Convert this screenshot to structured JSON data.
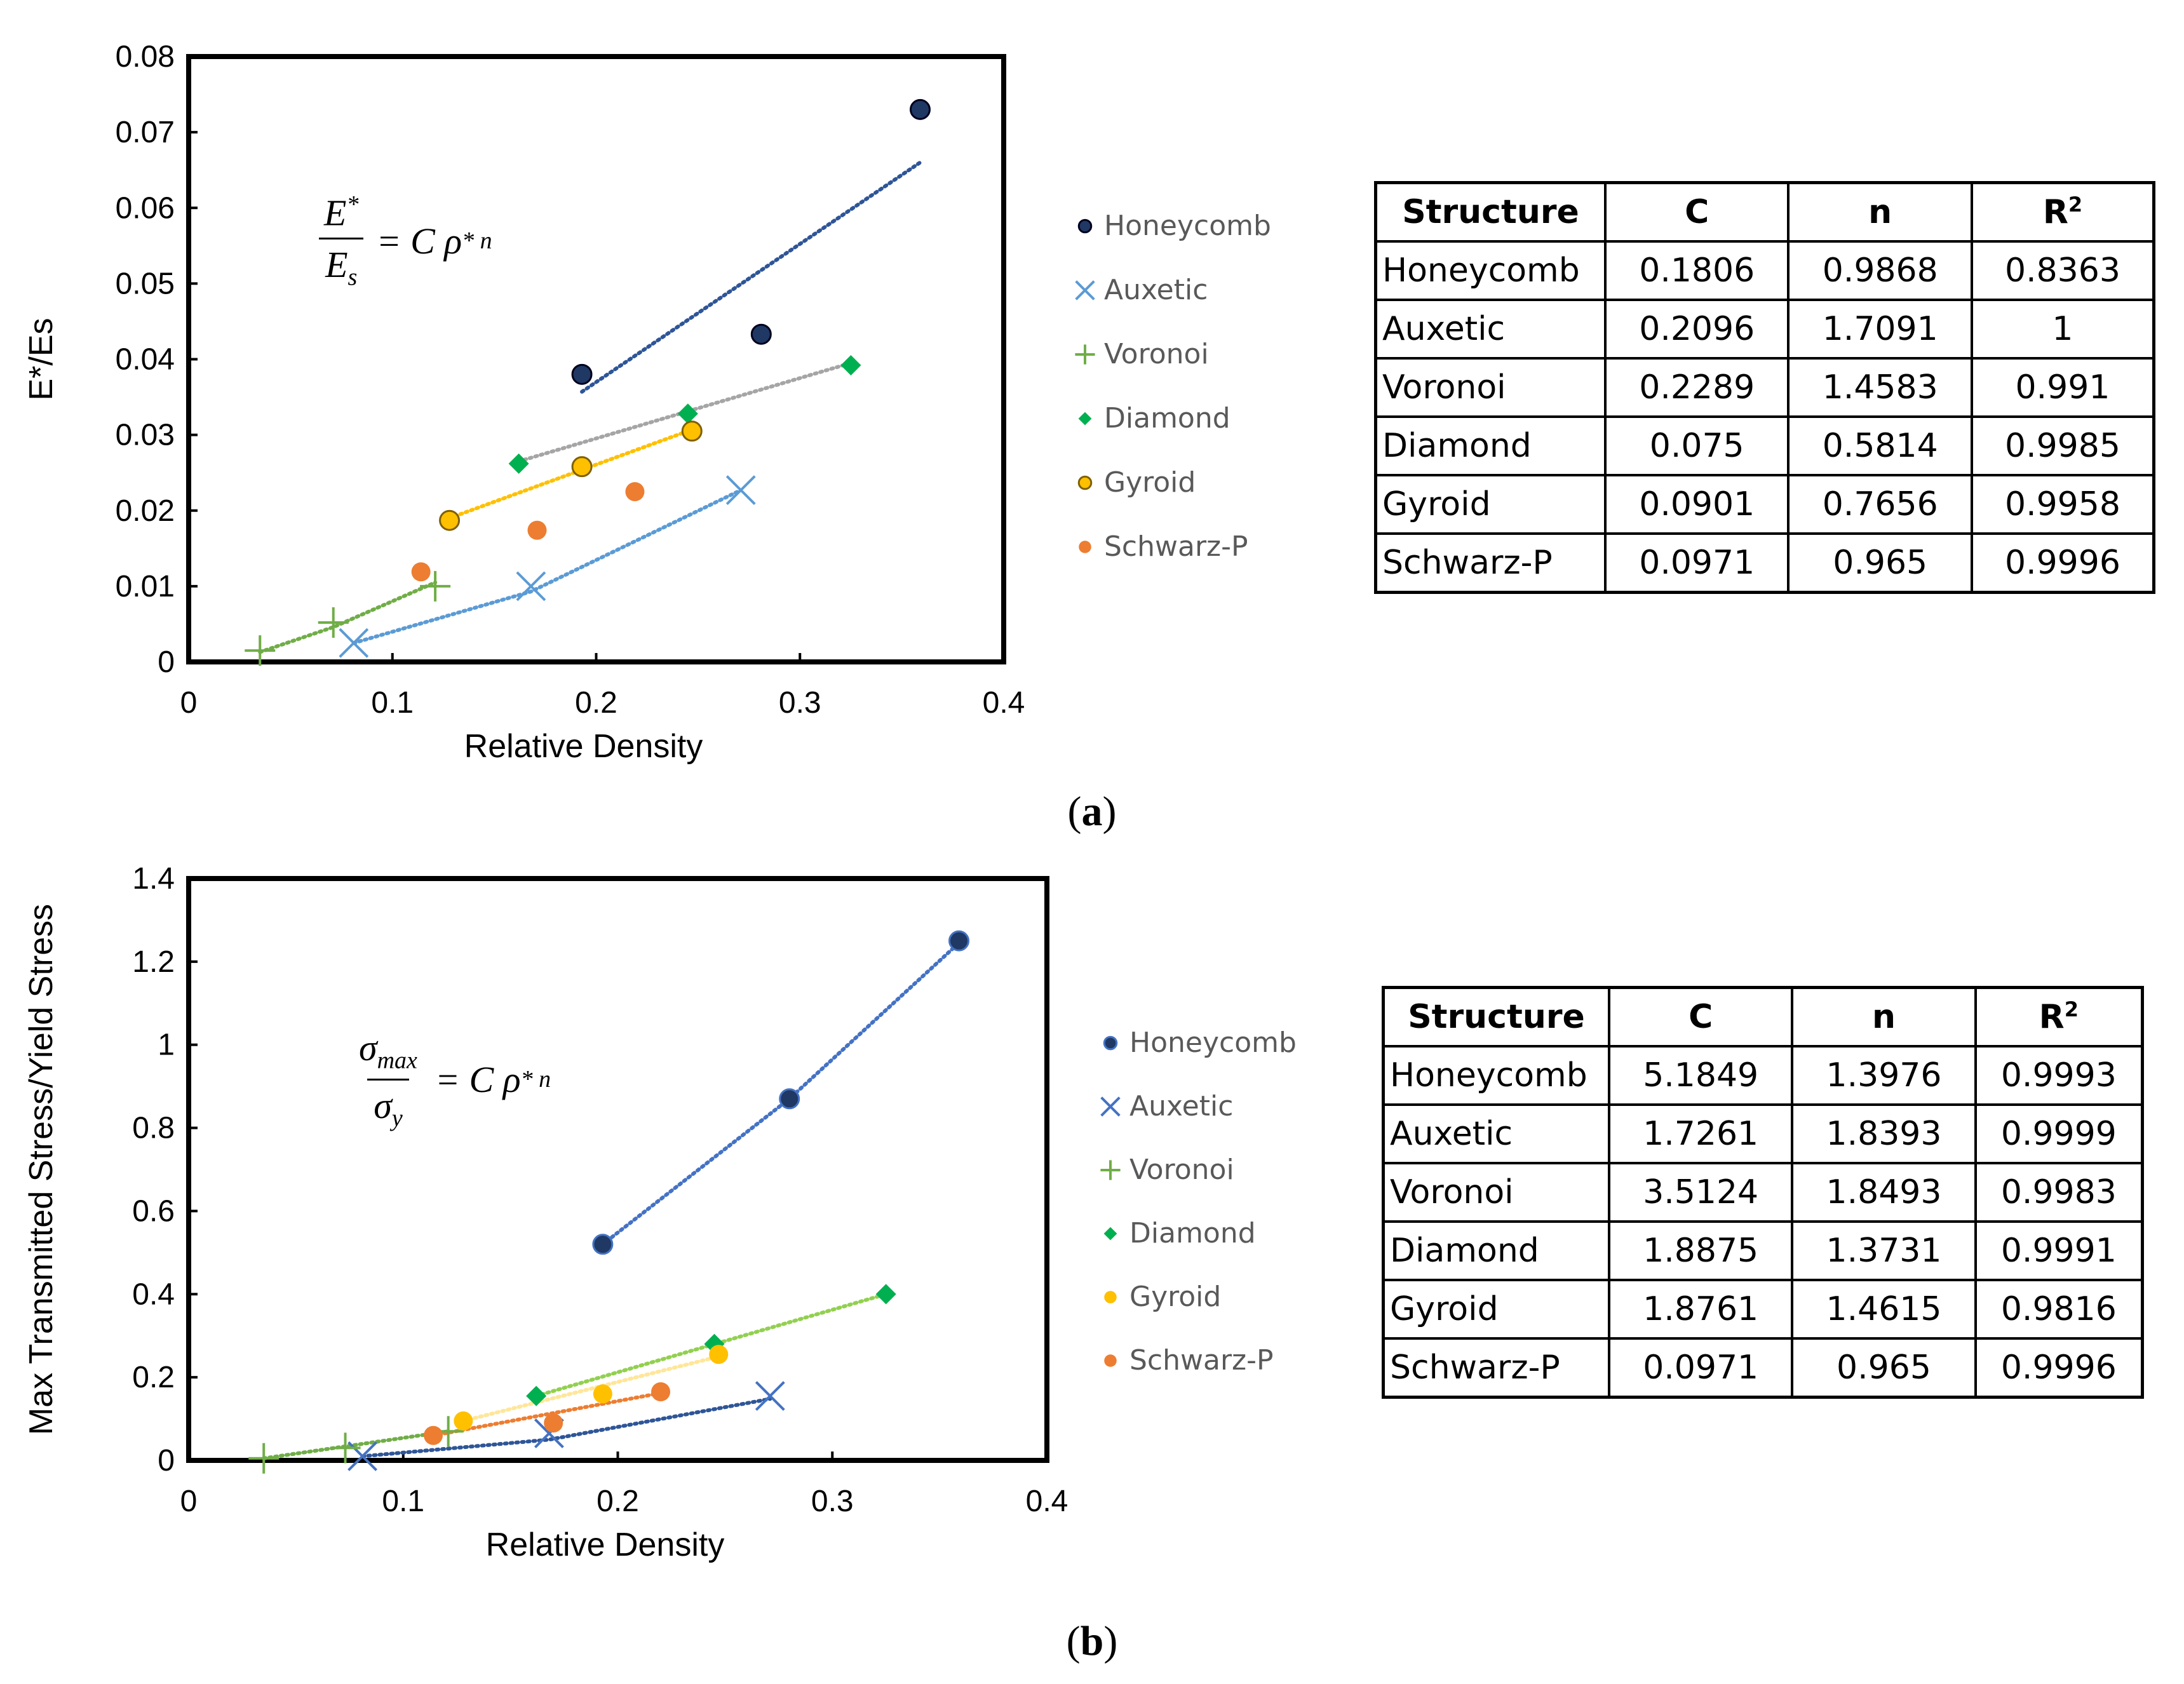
{
  "colors": {
    "honeycomb": "#1f3864",
    "auxetic": "#5b9bd5",
    "voronoi": "#70ad47",
    "diamond": "#00b050",
    "gyroid": "#ffc000",
    "schwarzp": "#ed7d31"
  },
  "chart_data": [
    {
      "id": "a",
      "type": "scatter",
      "caption_letter": "a",
      "xlabel": "Relative Density",
      "ylabel": "E*/Es",
      "xlim": [
        0,
        0.4
      ],
      "ylim": [
        0,
        0.08
      ],
      "xticks": [
        "0",
        "0.1",
        "0.2",
        "0.3",
        "0.4"
      ],
      "yticks": [
        "0",
        "0.01",
        "0.02",
        "0.03",
        "0.04",
        "0.05",
        "0.06",
        "0.07",
        "0.08"
      ],
      "xtick_values": [
        0,
        0.1,
        0.2,
        0.3,
        0.4
      ],
      "ytick_values": [
        0,
        0.01,
        0.02,
        0.03,
        0.04,
        0.05,
        0.06,
        0.07,
        0.08
      ],
      "formula": {
        "num": "E",
        "num_sup": "*",
        "den": "E",
        "den_sub": "s",
        "rhs": "= C ρ",
        "rhs_sup": "* n"
      },
      "series": [
        {
          "name": "Honeycomb",
          "key": "honeycomb",
          "marker": "circle-outline",
          "x": [
            0.193,
            0.281,
            0.359
          ],
          "y": [
            0.038,
            0.0433,
            0.073
          ],
          "trend": [
            [
              0.193,
              0.0357
            ],
            [
              0.359,
              0.066
            ]
          ],
          "trend_color": "#2e5597"
        },
        {
          "name": "Auxetic",
          "key": "auxetic",
          "marker": "x",
          "x": [
            0.081,
            0.168,
            0.271
          ],
          "y": [
            0.0025,
            0.01,
            0.0227
          ],
          "trend": [
            [
              0.081,
              0.0025
            ],
            [
              0.168,
              0.0093
            ],
            [
              0.271,
              0.0227
            ]
          ],
          "trend_color": "#5b9bd5"
        },
        {
          "name": "Voronoi",
          "key": "voronoi",
          "marker": "plus",
          "x": [
            0.035,
            0.071,
            0.121
          ],
          "y": [
            0.0015,
            0.0052,
            0.01
          ],
          "trend": [
            [
              0.035,
              0.0013
            ],
            [
              0.071,
              0.0046
            ],
            [
              0.121,
              0.0105
            ]
          ],
          "trend_color": "#70ad47"
        },
        {
          "name": "Diamond",
          "key": "diamond",
          "marker": "diamond",
          "x": [
            0.162,
            0.245,
            0.325
          ],
          "y": [
            0.0262,
            0.0328,
            0.0392
          ],
          "trend": [
            [
              0.162,
              0.0265
            ],
            [
              0.325,
              0.0395
            ]
          ],
          "trend_color": "#a5a5a5"
        },
        {
          "name": "Gyroid",
          "key": "gyroid",
          "marker": "circle-outline-dark",
          "x": [
            0.128,
            0.193,
            0.247
          ],
          "y": [
            0.0187,
            0.0258,
            0.0305
          ],
          "trend": [
            [
              0.128,
              0.019
            ],
            [
              0.247,
              0.0307
            ]
          ],
          "trend_color": "#ffc000"
        },
        {
          "name": "Schwarz-P",
          "key": "schwarzp",
          "marker": "circle",
          "x": [
            0.114,
            0.171,
            0.219
          ],
          "y": [
            0.0119,
            0.0174,
            0.0225
          ],
          "trend": [],
          "trend_color": "#ed7d31"
        }
      ],
      "table": {
        "headers": [
          "Structure",
          "C",
          "n",
          "R",
          "2"
        ],
        "rows": [
          [
            "Honeycomb",
            "0.1806",
            "0.9868",
            "0.8363"
          ],
          [
            "Auxetic",
            "0.2096",
            "1.7091",
            "1"
          ],
          [
            "Voronoi",
            "0.2289",
            "1.4583",
            "0.991"
          ],
          [
            "Diamond",
            "0.075",
            "0.5814",
            "0.9985"
          ],
          [
            "Gyroid",
            "0.0901",
            "0.7656",
            "0.9958"
          ],
          [
            "Schwarz-P",
            "0.0971",
            "0.965",
            "0.9996"
          ]
        ]
      }
    },
    {
      "id": "b",
      "type": "scatter",
      "caption_letter": "b",
      "xlabel": "Relative Density",
      "ylabel": "Max Transmitted Stress/Yield Stress",
      "xlim": [
        0,
        0.4
      ],
      "ylim": [
        0,
        1.4
      ],
      "xticks": [
        "0",
        "0.1",
        "0.2",
        "0.3",
        "0.4"
      ],
      "yticks": [
        "0",
        "0.2",
        "0.4",
        "0.6",
        "0.8",
        "1",
        "1.2",
        "1.4"
      ],
      "xtick_values": [
        0,
        0.1,
        0.2,
        0.3,
        0.4
      ],
      "ytick_values": [
        0,
        0.2,
        0.4,
        0.6,
        0.8,
        1.0,
        1.2,
        1.4
      ],
      "formula": {
        "num": "σ",
        "num_sub": "max",
        "den": "σ",
        "den_sub": "y",
        "rhs": "= C ρ",
        "rhs_sup": "* n"
      },
      "series": [
        {
          "name": "Honeycomb",
          "key": "honeycomb",
          "marker": "circle-dot",
          "x": [
            0.193,
            0.28,
            0.359
          ],
          "y": [
            0.52,
            0.87,
            1.25
          ],
          "trend": [
            [
              0.193,
              0.52
            ],
            [
              0.28,
              0.87
            ],
            [
              0.359,
              1.245
            ]
          ],
          "trend_color": "#4472c4"
        },
        {
          "name": "Auxetic",
          "key": "auxetic",
          "marker": "x-dark",
          "x": [
            0.081,
            0.168,
            0.271
          ],
          "y": [
            0.01,
            0.065,
            0.155
          ],
          "trend": [
            [
              0.081,
              0.01
            ],
            [
              0.168,
              0.05
            ],
            [
              0.271,
              0.148
            ]
          ],
          "trend_color": "#2e5597"
        },
        {
          "name": "Voronoi",
          "key": "voronoi",
          "marker": "plus",
          "x": [
            0.035,
            0.073,
            0.121
          ],
          "y": [
            0.005,
            0.03,
            0.07
          ],
          "trend": [
            [
              0.035,
              0.005
            ],
            [
              0.121,
              0.07
            ]
          ],
          "trend_color": "#70ad47"
        },
        {
          "name": "Diamond",
          "key": "diamond",
          "marker": "diamond",
          "x": [
            0.162,
            0.245,
            0.325
          ],
          "y": [
            0.155,
            0.28,
            0.4
          ],
          "trend": [
            [
              0.162,
              0.155
            ],
            [
              0.325,
              0.4
            ]
          ],
          "trend_color": "#92d050"
        },
        {
          "name": "Gyroid",
          "key": "gyroid",
          "marker": "circle",
          "x": [
            0.128,
            0.193,
            0.247
          ],
          "y": [
            0.095,
            0.16,
            0.255
          ],
          "trend": [
            [
              0.128,
              0.095
            ],
            [
              0.247,
              0.25
            ]
          ],
          "trend_color": "#ffe699"
        },
        {
          "name": "Schwarz-P",
          "key": "schwarzp",
          "marker": "circle",
          "x": [
            0.114,
            0.17,
            0.22
          ],
          "y": [
            0.06,
            0.09,
            0.165
          ],
          "trend": [
            [
              0.114,
              0.06
            ],
            [
              0.22,
              0.162
            ]
          ],
          "trend_color": "#ed7d31"
        }
      ],
      "table": {
        "headers": [
          "Structure",
          "C",
          "n",
          "R",
          "2"
        ],
        "rows": [
          [
            "Honeycomb",
            "5.1849",
            "1.3976",
            "0.9993"
          ],
          [
            "Auxetic",
            "1.7261",
            "1.8393",
            "0.9999"
          ],
          [
            "Voronoi",
            "3.5124",
            "1.8493",
            "0.9983"
          ],
          [
            "Diamond",
            "1.8875",
            "1.3731",
            "0.9991"
          ],
          [
            "Gyroid",
            "1.8761",
            "1.4615",
            "0.9816"
          ],
          [
            "Schwarz-P",
            "0.0971",
            "0.965",
            "0.9996"
          ]
        ]
      }
    }
  ]
}
